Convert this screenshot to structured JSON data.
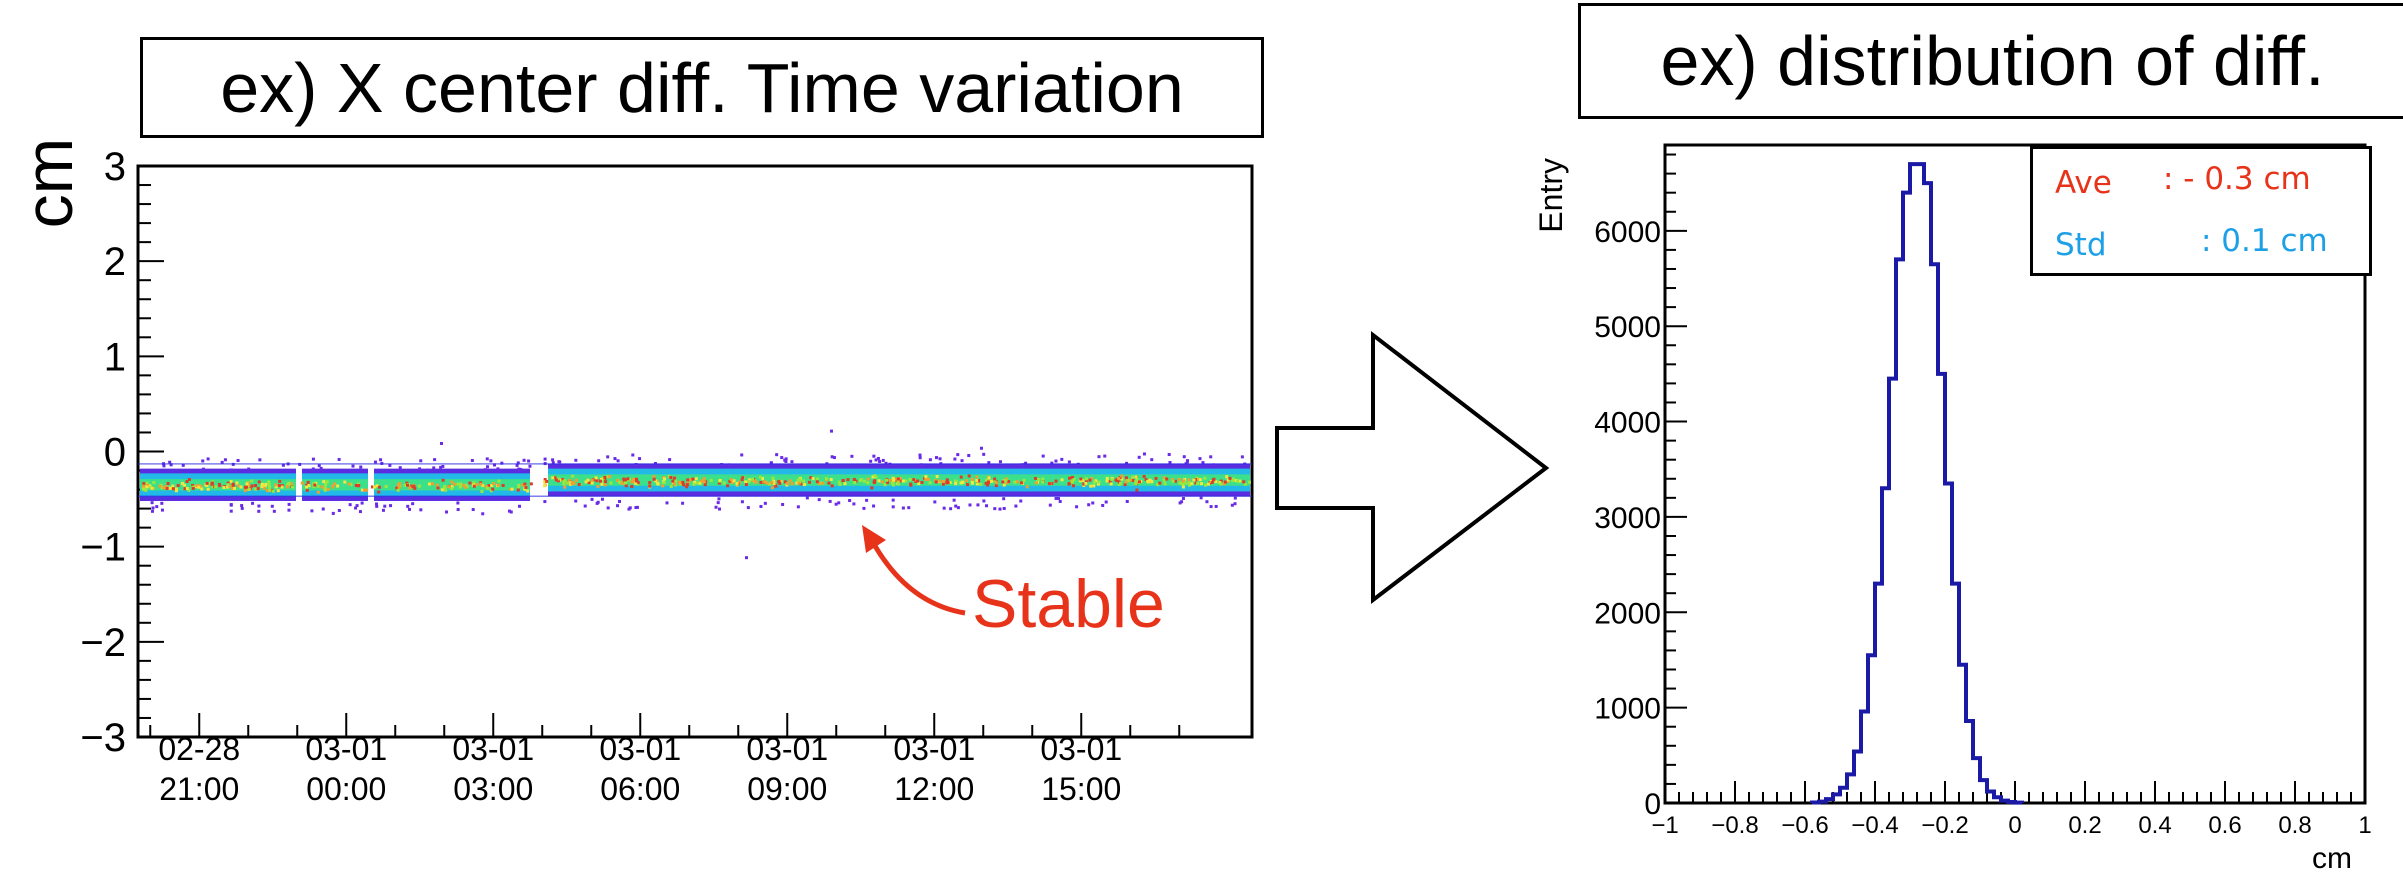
{
  "chart_data": [
    {
      "type": "scatter",
      "title": "ex) X center diff. Time variation",
      "ylabel": "cm",
      "ylim": [
        -3,
        3
      ],
      "y_ticks": [
        "3",
        "2",
        "1",
        "0",
        "−1",
        "−2",
        "−3"
      ],
      "x_ticks": [
        {
          "date": "02-28",
          "time": "21:00"
        },
        {
          "date": "03-01",
          "time": "00:00"
        },
        {
          "date": "03-01",
          "time": "03:00"
        },
        {
          "date": "03-01",
          "time": "06:00"
        },
        {
          "date": "03-01",
          "time": "09:00"
        },
        {
          "date": "03-01",
          "time": "12:00"
        },
        {
          "date": "03-01",
          "time": "15:00"
        }
      ],
      "xlim": [
        "02-28 19:45",
        "03-01 17:30"
      ],
      "band_center": -0.3,
      "band_width": 0.1,
      "annotation": "Stable",
      "colormap": "rainbow density (blue-green-yellow-red)"
    },
    {
      "type": "histogram",
      "title": "ex) distribution of diff.",
      "xlabel": "cm",
      "ylabel": "Entry",
      "xlim": [
        -1,
        1
      ],
      "ylim": [
        0,
        6900
      ],
      "x_ticks": [
        "−1",
        "−0.8",
        "−0.6",
        "−0.4",
        "−0.2",
        "0",
        "0.2",
        "0.4",
        "0.6",
        "0.8",
        "1"
      ],
      "y_ticks": [
        "0",
        "1000",
        "2000",
        "3000",
        "4000",
        "5000",
        "6000"
      ],
      "bin_width": 0.02,
      "bins_x0": -0.58,
      "values": [
        5,
        15,
        40,
        90,
        160,
        300,
        540,
        960,
        1550,
        2300,
        3300,
        4450,
        5700,
        6400,
        6700,
        6700,
        6500,
        5650,
        4500,
        3350,
        2300,
        1450,
        860,
        470,
        240,
        120,
        60,
        25,
        10,
        4
      ],
      "line_color": "#1a1aa6",
      "stats": {
        "ave_label": "Ave",
        "ave_value": ": - 0.3 cm",
        "std_label": "Std",
        "std_value": ": 0.1 cm",
        "ave_color": "#e8331b",
        "std_color": "#1ea0e6"
      }
    }
  ]
}
